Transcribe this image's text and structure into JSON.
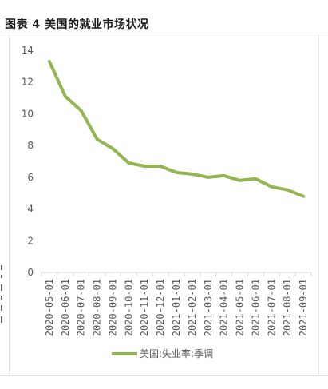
{
  "figure_title": "图表 4 美国的就业市场状况",
  "colors": {
    "series": "#92B550",
    "axis": "#d9d9d9",
    "text": "#595959"
  },
  "chart_data": {
    "type": "line",
    "title": "",
    "xlabel": "",
    "ylabel": "",
    "ylim": [
      0,
      14
    ],
    "yticks": [
      0,
      2,
      4,
      6,
      8,
      10,
      12,
      14
    ],
    "grid": false,
    "legend_position": "bottom",
    "x": [
      "2020-05-01",
      "2020-06-01",
      "2020-07-01",
      "2020-08-01",
      "2020-09-01",
      "2020-10-01",
      "2020-11-01",
      "2020-12-01",
      "2021-01-01",
      "2021-02-01",
      "2021-03-01",
      "2021-04-01",
      "2021-05-01",
      "2021-06-01",
      "2021-07-01",
      "2021-08-01",
      "2021-09-01"
    ],
    "series": [
      {
        "name": "美国:失业率:季调",
        "values": [
          13.3,
          11.1,
          10.2,
          8.4,
          7.8,
          6.9,
          6.7,
          6.7,
          6.3,
          6.2,
          6.0,
          6.1,
          5.8,
          5.9,
          5.4,
          5.2,
          4.8
        ]
      }
    ]
  }
}
